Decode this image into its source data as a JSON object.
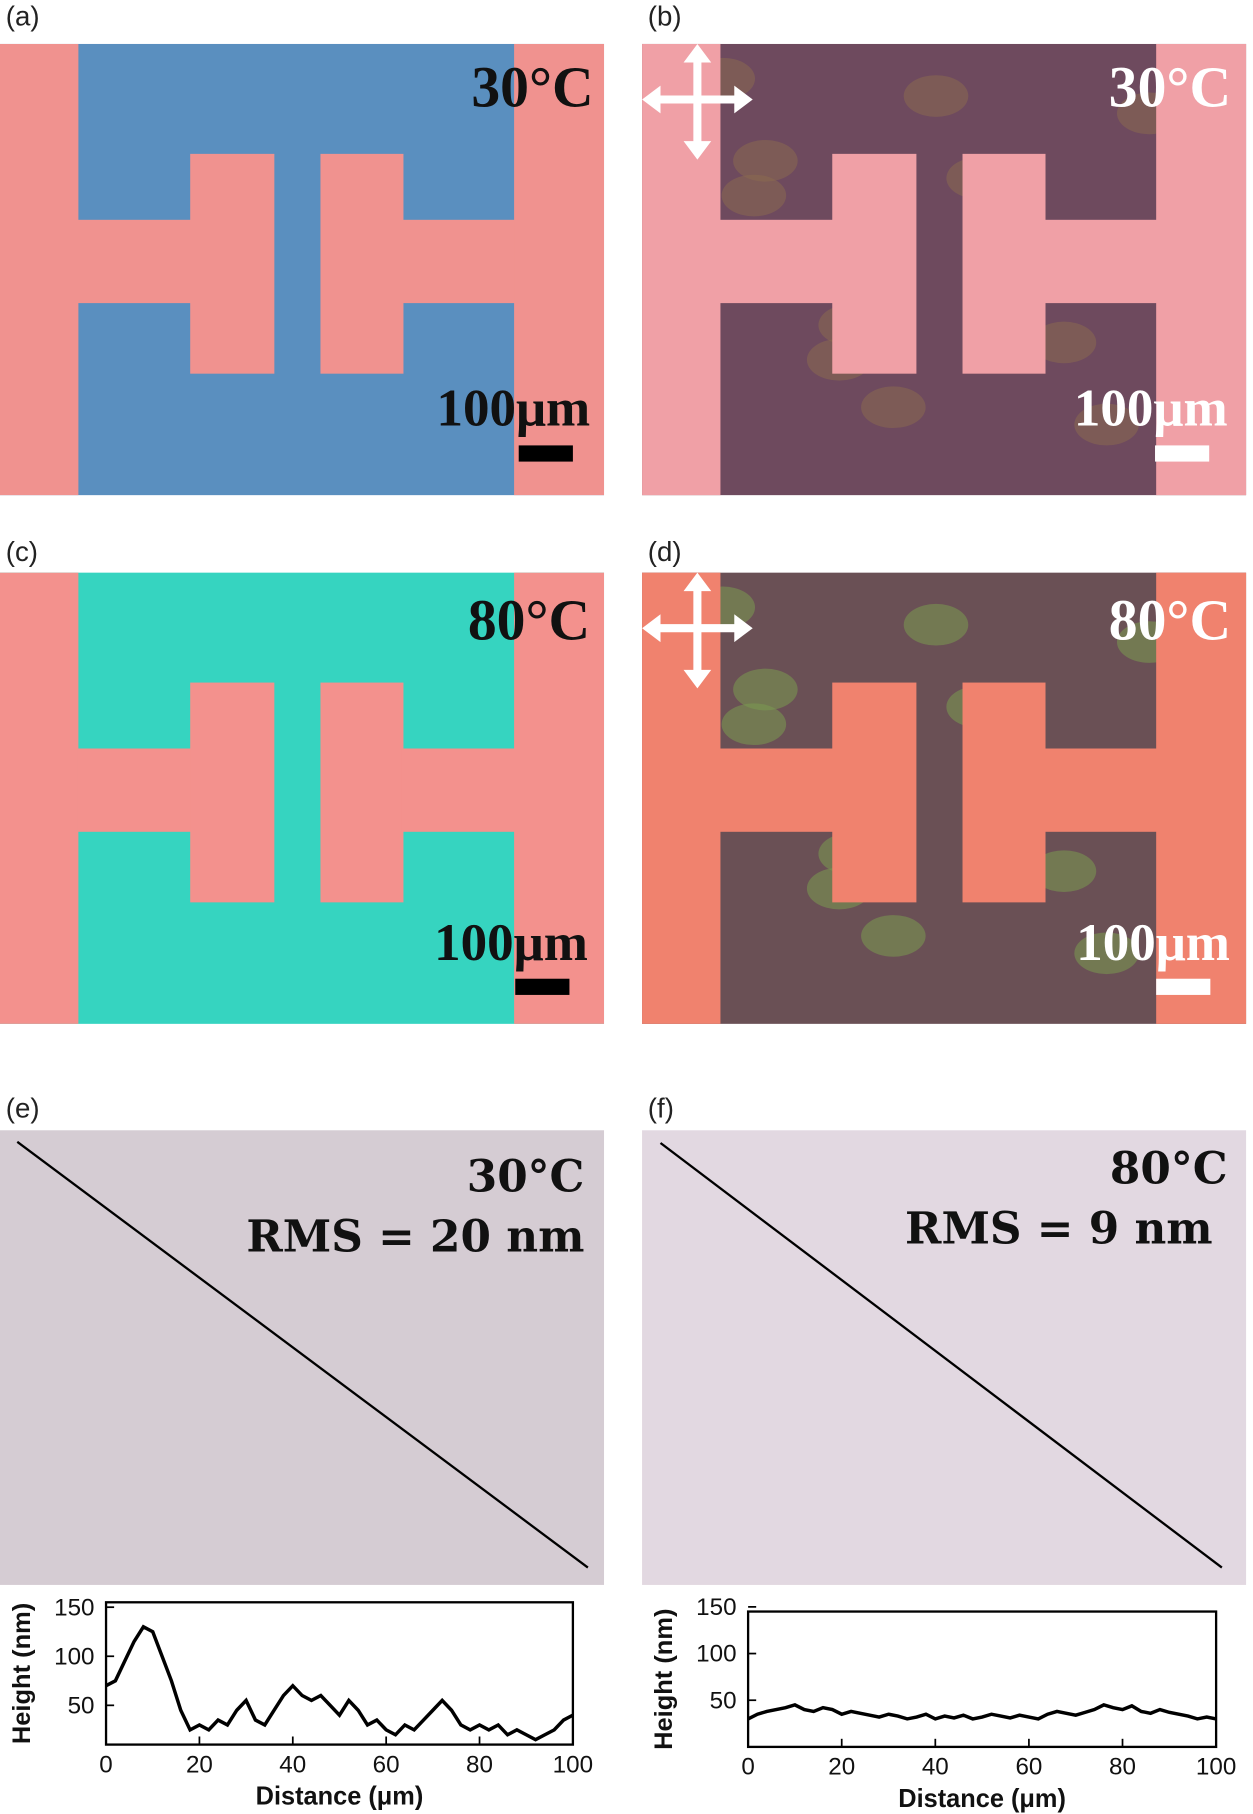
{
  "panels": [
    {
      "label": "(a)",
      "temperature": "30°C",
      "scale_bar": "100μm"
    },
    {
      "label": "(b)",
      "temperature": "30°C",
      "scale_bar": "100μm"
    },
    {
      "label": "(c)",
      "temperature": "80°C",
      "scale_bar": "100μm"
    },
    {
      "label": "(d)",
      "temperature": "80°C",
      "scale_bar": "100μm"
    },
    {
      "label": "(e)",
      "temperature": "30°C",
      "rms": "RMS = 20 nm"
    },
    {
      "label": "(f)",
      "temperature": "80°C",
      "rms": "RMS = 9 nm"
    }
  ],
  "chart_data": [
    {
      "type": "line",
      "x_label": "Distance (μm)",
      "y_label": "Height (nm)",
      "color": "#000000",
      "x": [
        0,
        2,
        4,
        6,
        8,
        10,
        12,
        14,
        16,
        18,
        20,
        22,
        24,
        26,
        28,
        30,
        32,
        34,
        36,
        38,
        40,
        42,
        44,
        46,
        48,
        50,
        52,
        54,
        56,
        58,
        60,
        62,
        64,
        66,
        68,
        70,
        72,
        74,
        76,
        78,
        80,
        82,
        84,
        86,
        88,
        90,
        92,
        94,
        96,
        98,
        100
      ],
      "values": [
        70,
        75,
        95,
        115,
        130,
        125,
        100,
        75,
        45,
        25,
        30,
        25,
        35,
        30,
        45,
        55,
        35,
        30,
        45,
        60,
        70,
        60,
        55,
        60,
        50,
        40,
        55,
        45,
        30,
        35,
        25,
        20,
        30,
        25,
        35,
        45,
        55,
        45,
        30,
        25,
        30,
        25,
        30,
        20,
        25,
        20,
        15,
        20,
        25,
        35,
        40
      ],
      "xlim": [
        0,
        100
      ],
      "xticks": [
        0,
        20,
        40,
        60,
        80,
        100
      ],
      "ylim": [
        10,
        155
      ],
      "yticks": [
        50,
        100,
        150
      ]
    },
    {
      "type": "line",
      "x_label": "Distance (μm)",
      "y_label": "Height (nm)",
      "color": "#000000",
      "x": [
        0,
        2,
        4,
        6,
        8,
        10,
        12,
        14,
        16,
        18,
        20,
        22,
        24,
        26,
        28,
        30,
        32,
        34,
        36,
        38,
        40,
        42,
        44,
        46,
        48,
        50,
        52,
        54,
        56,
        58,
        60,
        62,
        64,
        66,
        68,
        70,
        72,
        74,
        76,
        78,
        80,
        82,
        84,
        86,
        88,
        90,
        92,
        94,
        96,
        98,
        100
      ],
      "values": [
        30,
        35,
        38,
        40,
        42,
        45,
        40,
        38,
        42,
        40,
        35,
        38,
        36,
        34,
        32,
        35,
        33,
        30,
        32,
        35,
        30,
        33,
        31,
        34,
        30,
        32,
        35,
        33,
        31,
        34,
        32,
        30,
        35,
        38,
        36,
        34,
        37,
        40,
        45,
        42,
        40,
        44,
        38,
        36,
        40,
        37,
        35,
        33,
        30,
        32,
        30
      ],
      "xlim": [
        0,
        100
      ],
      "xticks": [
        0,
        20,
        40,
        60,
        80,
        100
      ],
      "ylim": [
        0,
        145
      ],
      "yticks": [
        50,
        100,
        150
      ]
    }
  ]
}
